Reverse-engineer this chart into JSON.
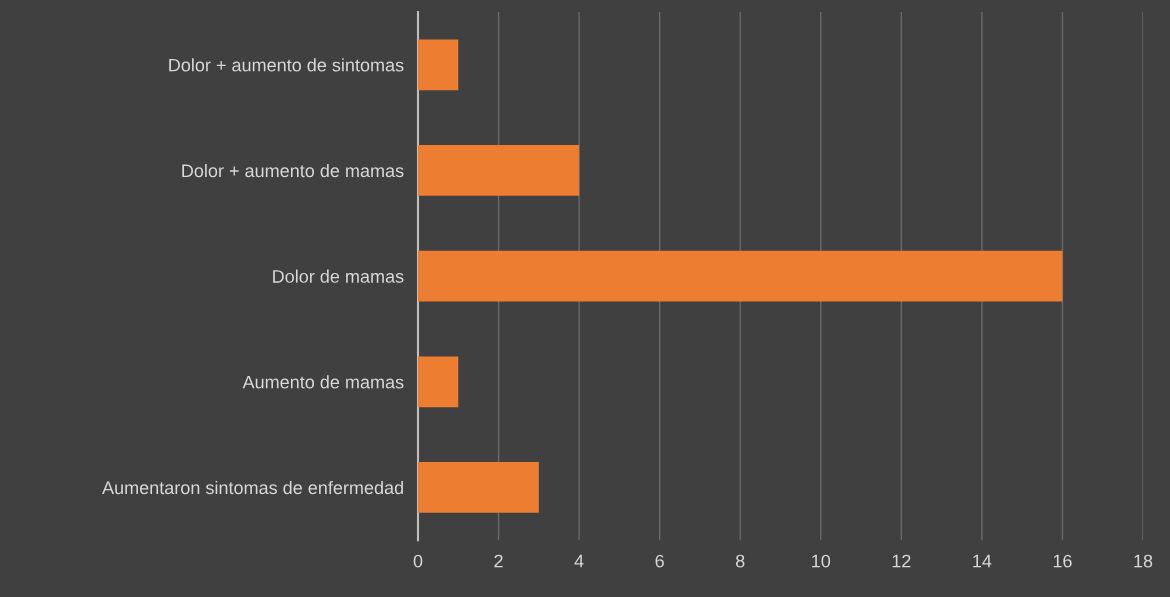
{
  "chart_data": {
    "type": "bar",
    "orientation": "horizontal",
    "categories": [
      "Dolor + aumento de sintomas",
      "Dolor + aumento de mamas",
      "Dolor de mamas",
      "Aumento de mamas",
      "Aumentaron sintomas de enfermedad"
    ],
    "values": [
      1,
      4,
      16,
      1,
      3
    ],
    "color": "#ed7d31",
    "xlim": [
      0,
      18
    ],
    "xticks": [
      0,
      2,
      4,
      6,
      8,
      10,
      12,
      14,
      16,
      18
    ],
    "grid": "x"
  }
}
